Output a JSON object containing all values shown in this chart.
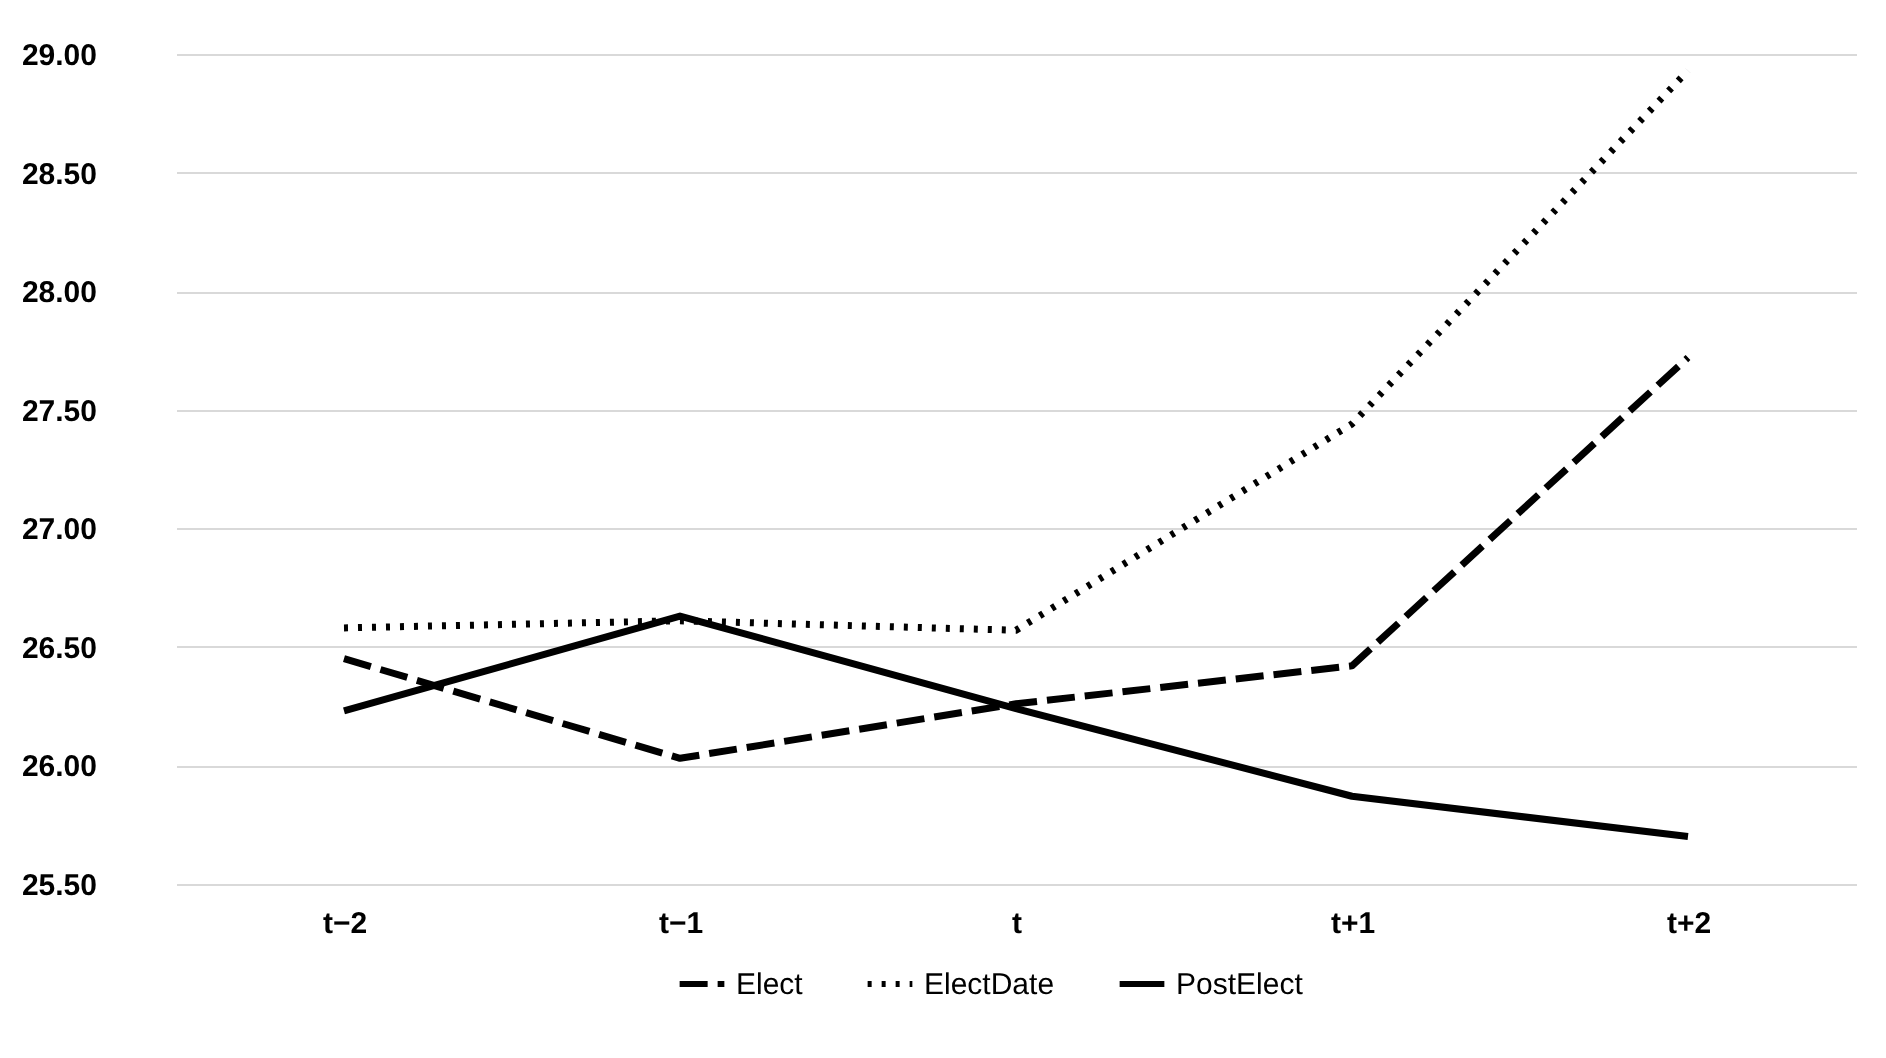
{
  "chart_data": {
    "type": "line",
    "categories": [
      "t−2",
      "t−1",
      "t",
      "t+1",
      "t+2"
    ],
    "series": [
      {
        "name": "Elect",
        "color": "#000000",
        "line_style": "dashed",
        "values": [
          26.45,
          26.03,
          26.26,
          26.42,
          27.72
        ]
      },
      {
        "name": "ElectDate",
        "color": "#000000",
        "line_style": "dotted",
        "values": [
          26.58,
          26.61,
          26.57,
          27.44,
          28.93
        ]
      },
      {
        "name": "PostElect",
        "color": "#000000",
        "line_style": "solid",
        "values": [
          26.23,
          26.63,
          26.24,
          25.87,
          25.7
        ]
      }
    ],
    "ylim": [
      25.5,
      29.0
    ],
    "yticks": [
      {
        "value": 25.5,
        "label": "25.50"
      },
      {
        "value": 26.0,
        "label": "26.00"
      },
      {
        "value": 26.5,
        "label": "26.50"
      },
      {
        "value": 27.0,
        "label": "27.00"
      },
      {
        "value": 27.5,
        "label": "27.50"
      },
      {
        "value": 28.0,
        "label": "28.00"
      },
      {
        "value": 28.5,
        "label": "28.50"
      },
      {
        "value": 29.0,
        "label": "29.00"
      }
    ],
    "grid": "y",
    "legend": "bottom",
    "marker": "none"
  }
}
